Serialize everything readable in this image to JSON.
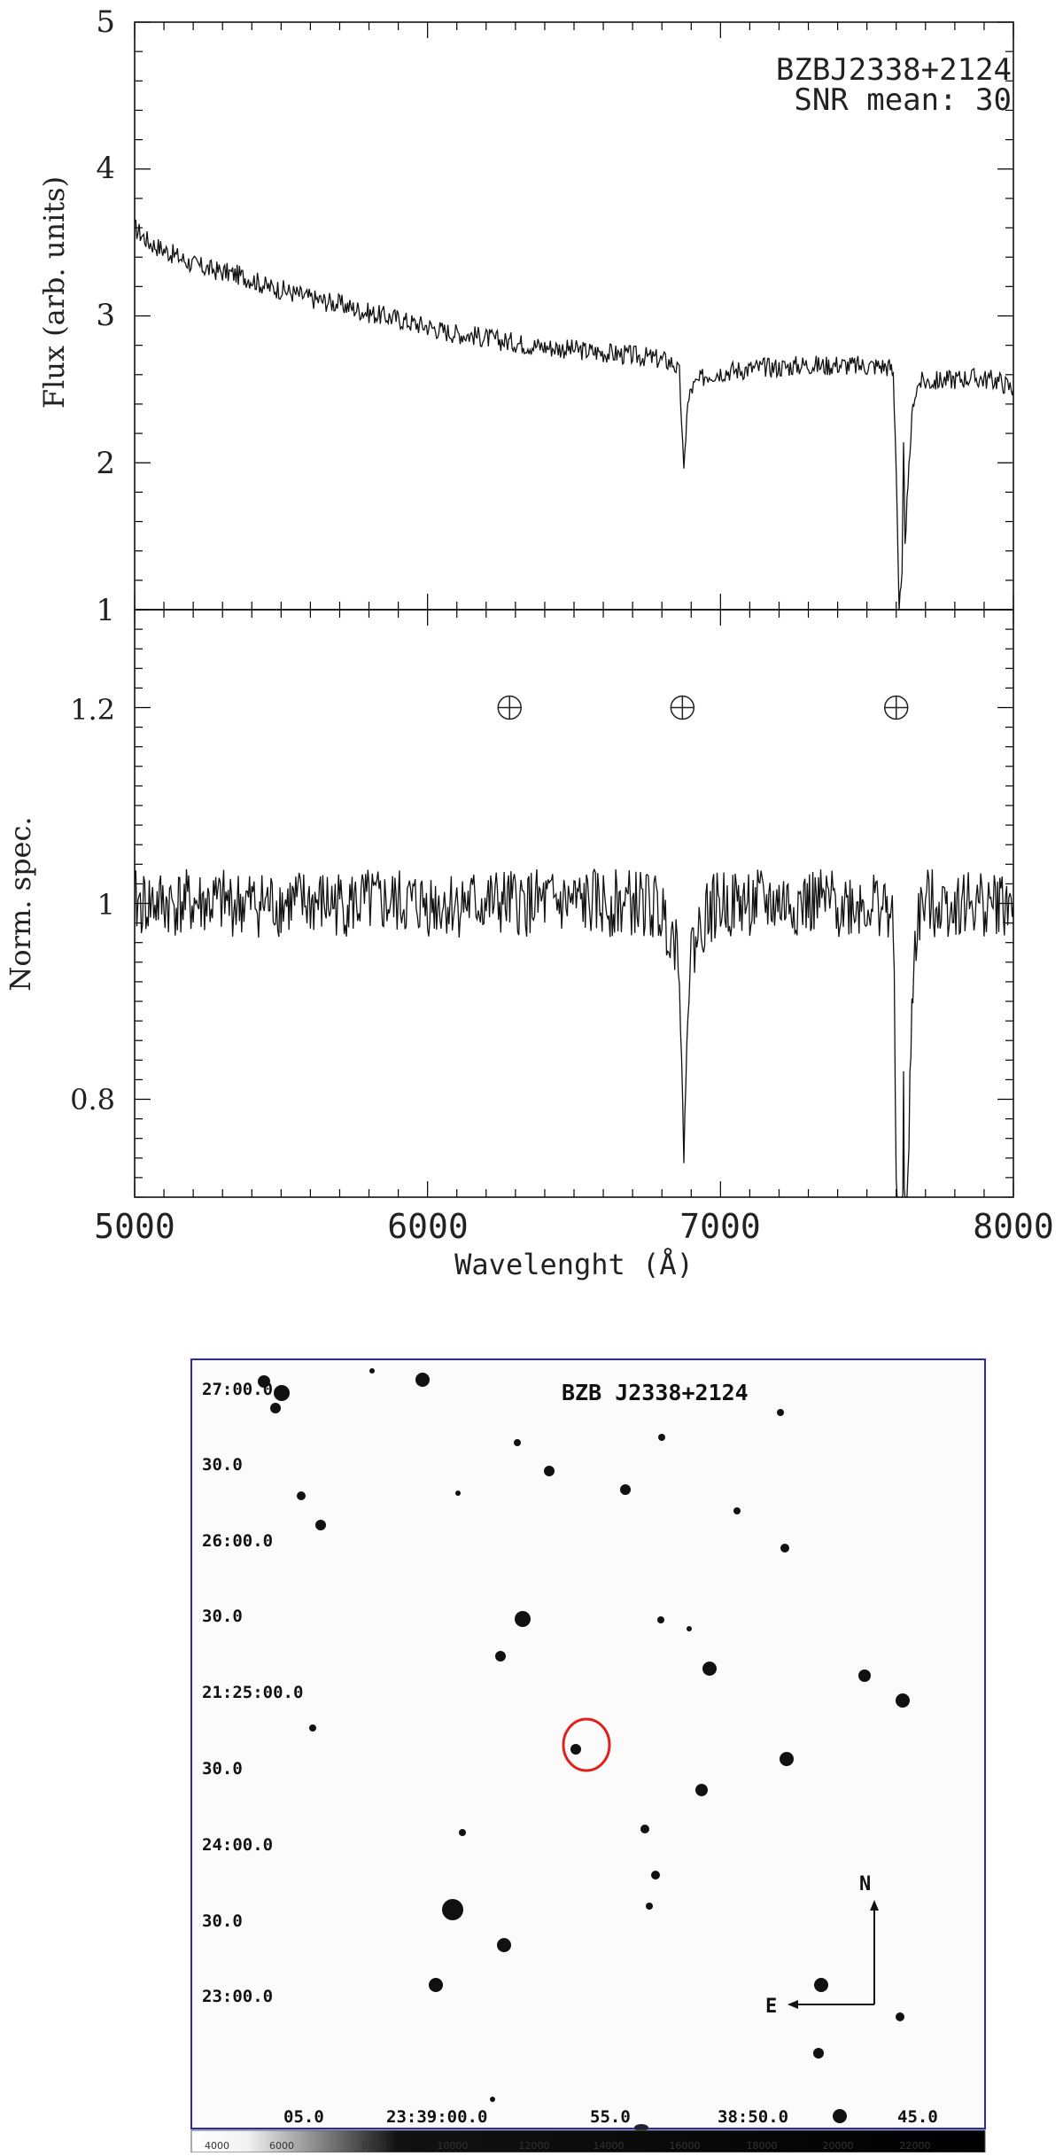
{
  "chart_data": [
    {
      "type": "line",
      "name": "flux-spectrum",
      "ylabel": "Flux (arb. units)",
      "xlim": [
        5000,
        8000
      ],
      "ylim": [
        1,
        5
      ],
      "yticks": [
        "1",
        "2",
        "3",
        "4",
        "5"
      ],
      "annotation": [
        "BZBJ2338+2124",
        "SNR mean: 30"
      ],
      "x": [
        5000,
        5050,
        5100,
        5150,
        5200,
        5250,
        5300,
        5350,
        5400,
        5450,
        5500,
        5550,
        5600,
        5650,
        5700,
        5750,
        5800,
        5850,
        5900,
        5950,
        6000,
        6050,
        6100,
        6150,
        6200,
        6250,
        6300,
        6350,
        6400,
        6450,
        6500,
        6550,
        6600,
        6650,
        6700,
        6750,
        6800,
        6820,
        6840,
        6860,
        6867,
        6875,
        6885,
        6900,
        6950,
        7000,
        7050,
        7100,
        7150,
        7200,
        7250,
        7300,
        7350,
        7400,
        7450,
        7500,
        7550,
        7580,
        7590,
        7600,
        7610,
        7620,
        7625,
        7630,
        7640,
        7650,
        7660,
        7680,
        7700,
        7750,
        7800,
        7850,
        7900,
        7950,
        8000
      ],
      "y": [
        3.6,
        3.5,
        3.45,
        3.4,
        3.35,
        3.32,
        3.3,
        3.28,
        3.25,
        3.2,
        3.18,
        3.15,
        3.12,
        3.1,
        3.08,
        3.05,
        3.02,
        3.0,
        2.98,
        2.95,
        2.93,
        2.9,
        2.88,
        2.87,
        2.85,
        2.83,
        2.82,
        2.8,
        2.79,
        2.78,
        2.77,
        2.76,
        2.75,
        2.74,
        2.73,
        2.72,
        2.7,
        2.69,
        2.68,
        2.6,
        2.3,
        1.9,
        2.35,
        2.5,
        2.6,
        2.62,
        2.63,
        2.64,
        2.65,
        2.65,
        2.66,
        2.67,
        2.66,
        2.67,
        2.66,
        2.66,
        2.66,
        2.65,
        2.6,
        2.0,
        1.0,
        1.2,
        2.1,
        1.5,
        1.8,
        2.2,
        2.45,
        2.55,
        2.55,
        2.56,
        2.57,
        2.58,
        2.57,
        2.56,
        2.5
      ]
    },
    {
      "type": "line",
      "name": "normalized-spectrum",
      "ylabel": "Norm. spec.",
      "xlabel": "Wavelenght (Å)",
      "xlim": [
        5000,
        8000
      ],
      "ylim": [
        0.7,
        1.3
      ],
      "xticks": [
        "5000",
        "6000",
        "7000",
        "8000"
      ],
      "yticks": [
        "0.8",
        "1",
        "1.2"
      ],
      "telluric_markers_x": [
        6280,
        6870,
        7600
      ],
      "telluric_marker_y": 1.2,
      "x": [
        5000,
        5050,
        5100,
        5150,
        5200,
        5250,
        5300,
        5350,
        5400,
        5450,
        5500,
        5550,
        5600,
        5650,
        5700,
        5750,
        5800,
        5850,
        5900,
        5950,
        6000,
        6050,
        6100,
        6150,
        6200,
        6250,
        6300,
        6350,
        6400,
        6450,
        6500,
        6550,
        6600,
        6650,
        6700,
        6750,
        6800,
        6820,
        6840,
        6860,
        6867,
        6875,
        6885,
        6900,
        6950,
        7000,
        7050,
        7100,
        7150,
        7200,
        7250,
        7300,
        7350,
        7400,
        7450,
        7500,
        7550,
        7580,
        7590,
        7600,
        7610,
        7620,
        7625,
        7630,
        7640,
        7650,
        7660,
        7680,
        7700,
        7750,
        7800,
        7850,
        7900,
        7950,
        8000
      ],
      "y": [
        1.0,
        1.0,
        1.0,
        1.0,
        1.0,
        1.0,
        1.0,
        1.0,
        1.0,
        1.0,
        1.0,
        1.0,
        1.0,
        1.0,
        1.0,
        1.0,
        1.0,
        1.0,
        1.0,
        1.0,
        1.0,
        1.0,
        1.0,
        1.0,
        1.0,
        1.0,
        1.0,
        1.0,
        1.0,
        1.0,
        1.0,
        1.0,
        1.0,
        1.0,
        1.0,
        1.0,
        0.99,
        0.98,
        0.97,
        0.95,
        0.86,
        0.7,
        0.89,
        0.95,
        0.99,
        1.0,
        1.0,
        1.0,
        1.0,
        1.0,
        1.0,
        1.0,
        1.0,
        1.0,
        1.0,
        1.0,
        1.0,
        0.99,
        0.97,
        0.75,
        0.5,
        0.6,
        0.82,
        0.65,
        0.7,
        0.86,
        0.95,
        0.99,
        1.0,
        1.0,
        1.0,
        1.0,
        1.0,
        1.0,
        1.0
      ]
    }
  ],
  "finder": {
    "title": "BZB J2338+2124",
    "dec_labels": [
      "27:00.0",
      "30.0",
      "26:00.0",
      "30.0",
      "21:25:00.0",
      "30.0",
      "24:00.0",
      "30.0",
      "23:00.0"
    ],
    "ra_labels": [
      "05.0",
      "23:39:00.0",
      "55.0",
      "38:50.0",
      "45.0"
    ],
    "colorbar_ticks": [
      "4000",
      "6000",
      "8000",
      "10000",
      "12000",
      "14000",
      "16000",
      "18000",
      "20000",
      "22000"
    ],
    "compass": {
      "north": "N",
      "east": "E"
    },
    "colors": {
      "frame": "#2a2ab0",
      "target_circle": "#e0201c"
    }
  }
}
